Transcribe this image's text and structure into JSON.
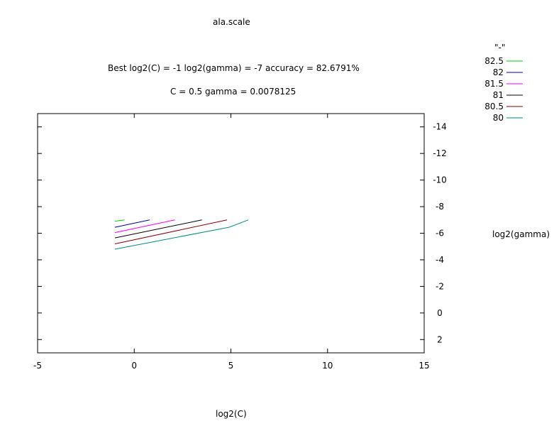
{
  "chart_data": {
    "type": "line",
    "title": "ala.scale",
    "subtitle_lines": [
      "Best log2(C) = -1  log2(gamma) = -7  accuracy = 82.6791%",
      "C = 0.5  gamma = 0.0078125"
    ],
    "xlabel": "log2(C)",
    "ylabel": "log2(gamma)",
    "xlim": [
      -5,
      15
    ],
    "ylim": [
      3,
      -15
    ],
    "x_ticks": [
      "-5",
      "0",
      "5",
      "10",
      "15"
    ],
    "y_ticks": [
      "-14",
      "-12",
      "-10",
      "-8",
      "-6",
      "-4",
      "-2",
      "0",
      "2"
    ],
    "legend_title": "\"-\"",
    "legend_position": "outside-top-right",
    "series": [
      {
        "name": "82.5",
        "color": "#00cc00",
        "x": [
          -1,
          -0.5
        ],
        "y": [
          -6.9,
          -7.0
        ]
      },
      {
        "name": "82",
        "color": "#0000a0",
        "x": [
          -1,
          0.8
        ],
        "y": [
          -6.45,
          -7.0
        ]
      },
      {
        "name": "81.5",
        "color": "#ff00ff",
        "x": [
          -1,
          2.1
        ],
        "y": [
          -6.05,
          -7.0
        ]
      },
      {
        "name": "81",
        "color": "#000000",
        "x": [
          -1,
          3.5
        ],
        "y": [
          -5.65,
          -7.0
        ]
      },
      {
        "name": "80.5",
        "color": "#8b0000",
        "x": [
          -1,
          4.8
        ],
        "y": [
          -5.2,
          -7.0
        ]
      },
      {
        "name": "80",
        "color": "#008b8b",
        "x": [
          -1,
          4.9,
          5.9
        ],
        "y": [
          -4.8,
          -6.45,
          -7.0
        ]
      }
    ]
  }
}
